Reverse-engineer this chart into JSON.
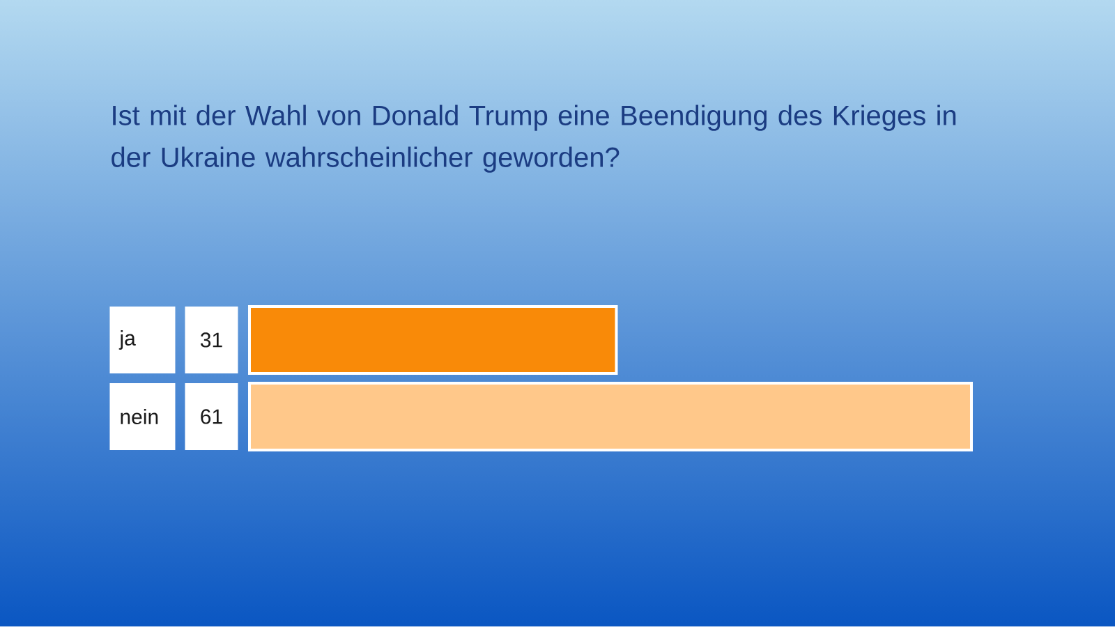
{
  "chart_data": {
    "type": "bar",
    "orientation": "horizontal",
    "title": "Ist mit der Wahl von Donald Trump eine Beendigung des Krieges in der Ukraine wahrscheinlicher geworden?",
    "categories": [
      "ja",
      "nein"
    ],
    "values": [
      31,
      61
    ],
    "colors": [
      "#f98a08",
      "#ffc88a"
    ],
    "data_labels": true
  }
}
